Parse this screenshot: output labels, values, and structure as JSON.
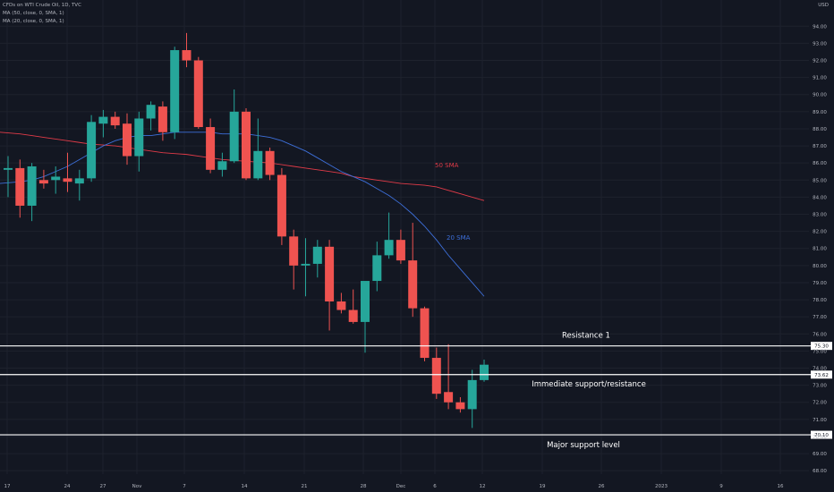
{
  "legend": {
    "title": "CFDs on WTI Crude Oil, 1D, TVC",
    "ma50": "MA (50, close, 0, SMA, 1)",
    "ma20": "MA (20, close, 0, SMA, 1)"
  },
  "currency": "USD",
  "chart_data": {
    "type": "candlestick",
    "title": "",
    "xlabel": "",
    "ylabel": "",
    "ylim": [
      67.8,
      94.8
    ],
    "y_ticks": [
      68,
      69,
      70,
      71,
      72,
      73,
      74,
      75,
      76,
      77,
      78,
      79,
      80,
      81,
      82,
      83,
      84,
      85,
      86,
      87,
      88,
      89,
      90,
      91,
      92,
      93,
      94
    ],
    "x_ticks": [
      "17",
      "24",
      "27",
      "Nov",
      "7",
      "14",
      "21",
      "28",
      "Dec",
      "6",
      "12",
      "19",
      "26",
      "2023",
      "9",
      "16"
    ],
    "candles": [
      {
        "o": 85.6,
        "h": 86.4,
        "l": 84.0,
        "c": 85.7
      },
      {
        "o": 85.7,
        "h": 86.2,
        "l": 82.8,
        "c": 83.5
      },
      {
        "o": 83.5,
        "h": 86.0,
        "l": 82.6,
        "c": 85.8
      },
      {
        "o": 85.0,
        "h": 85.6,
        "l": 84.5,
        "c": 84.8
      },
      {
        "o": 85.0,
        "h": 85.8,
        "l": 84.2,
        "c": 85.2
      },
      {
        "o": 85.1,
        "h": 86.6,
        "l": 84.3,
        "c": 84.9
      },
      {
        "o": 84.8,
        "h": 85.6,
        "l": 83.8,
        "c": 85.1
      },
      {
        "o": 85.1,
        "h": 88.8,
        "l": 84.9,
        "c": 88.4
      },
      {
        "o": 88.3,
        "h": 89.1,
        "l": 87.5,
        "c": 88.7
      },
      {
        "o": 88.7,
        "h": 89.0,
        "l": 88.0,
        "c": 88.2
      },
      {
        "o": 88.3,
        "h": 88.9,
        "l": 85.9,
        "c": 86.4
      },
      {
        "o": 86.4,
        "h": 89.0,
        "l": 85.5,
        "c": 88.6
      },
      {
        "o": 88.6,
        "h": 89.6,
        "l": 87.9,
        "c": 89.4
      },
      {
        "o": 89.3,
        "h": 89.6,
        "l": 87.3,
        "c": 87.8
      },
      {
        "o": 87.8,
        "h": 92.8,
        "l": 87.4,
        "c": 92.6
      },
      {
        "o": 92.6,
        "h": 93.6,
        "l": 91.6,
        "c": 92.0
      },
      {
        "o": 92.0,
        "h": 92.2,
        "l": 88.0,
        "c": 88.1
      },
      {
        "o": 88.1,
        "h": 88.6,
        "l": 85.4,
        "c": 85.6
      },
      {
        "o": 85.6,
        "h": 86.6,
        "l": 85.2,
        "c": 86.1
      },
      {
        "o": 86.1,
        "h": 90.3,
        "l": 86.0,
        "c": 89.0
      },
      {
        "o": 89.0,
        "h": 89.2,
        "l": 85.0,
        "c": 85.1
      },
      {
        "o": 85.1,
        "h": 88.6,
        "l": 85.0,
        "c": 86.7
      },
      {
        "o": 86.7,
        "h": 86.9,
        "l": 85.0,
        "c": 85.3
      },
      {
        "o": 85.3,
        "h": 85.7,
        "l": 81.2,
        "c": 81.7
      },
      {
        "o": 81.7,
        "h": 82.1,
        "l": 78.6,
        "c": 80.0
      },
      {
        "o": 80.0,
        "h": 81.6,
        "l": 78.2,
        "c": 80.1
      },
      {
        "o": 80.1,
        "h": 81.5,
        "l": 79.3,
        "c": 81.1
      },
      {
        "o": 81.1,
        "h": 81.5,
        "l": 76.2,
        "c": 77.9
      },
      {
        "o": 77.9,
        "h": 78.4,
        "l": 77.2,
        "c": 77.4
      },
      {
        "o": 77.4,
        "h": 78.6,
        "l": 76.6,
        "c": 76.7
      },
      {
        "o": 76.7,
        "h": 79.0,
        "l": 74.9,
        "c": 79.1
      },
      {
        "o": 79.1,
        "h": 81.4,
        "l": 78.5,
        "c": 80.6
      },
      {
        "o": 80.6,
        "h": 83.1,
        "l": 80.4,
        "c": 81.5
      },
      {
        "o": 81.5,
        "h": 82.1,
        "l": 80.1,
        "c": 80.3
      },
      {
        "o": 80.3,
        "h": 82.5,
        "l": 77.0,
        "c": 77.5
      },
      {
        "o": 77.5,
        "h": 77.6,
        "l": 74.4,
        "c": 74.6
      },
      {
        "o": 74.6,
        "h": 75.2,
        "l": 72.2,
        "c": 72.5
      },
      {
        "o": 72.6,
        "h": 75.4,
        "l": 71.6,
        "c": 72.0
      },
      {
        "o": 72.0,
        "h": 72.3,
        "l": 71.4,
        "c": 71.6
      },
      {
        "o": 71.6,
        "h": 73.9,
        "l": 70.5,
        "c": 73.3
      },
      {
        "o": 73.3,
        "h": 74.5,
        "l": 73.2,
        "c": 74.2
      }
    ],
    "series": [
      {
        "name": "50 SMA",
        "color": "#e03b48",
        "values": [
          87.8,
          87.7,
          87.6,
          87.5,
          87.4,
          87.3,
          87.2,
          87.1,
          87.05,
          87.0,
          86.9,
          86.8,
          86.7,
          86.6,
          86.55,
          86.5,
          86.4,
          86.3,
          86.2,
          86.15,
          86.1,
          86.05,
          86.0,
          85.9,
          85.8,
          85.7,
          85.6,
          85.5,
          85.4,
          85.2,
          85.1,
          85.0,
          84.9,
          84.8,
          84.75,
          84.7,
          84.6,
          84.4,
          84.2,
          84.0,
          83.8
        ]
      },
      {
        "name": "20 SMA",
        "color": "#3d6fd9",
        "values": [
          84.8,
          84.9,
          85.0,
          85.2,
          85.5,
          85.8,
          86.2,
          86.6,
          87.0,
          87.3,
          87.5,
          87.6,
          87.6,
          87.7,
          87.8,
          87.8,
          87.8,
          87.8,
          87.7,
          87.7,
          87.7,
          87.6,
          87.5,
          87.3,
          87.0,
          86.7,
          86.3,
          85.9,
          85.5,
          85.2,
          84.9,
          84.5,
          84.1,
          83.6,
          83.0,
          82.3,
          81.5,
          80.6,
          79.8,
          79.0,
          78.2
        ]
      }
    ],
    "levels": [
      {
        "label": "Resistance 1",
        "value": 75.3,
        "tag": "75.30"
      },
      {
        "label": "Immediate support/resistance",
        "value": 73.62,
        "tag": "73.62"
      },
      {
        "label": "Major support level",
        "value": 70.1,
        "tag": "70.10"
      }
    ],
    "colors": {
      "up": "#26a69a",
      "down": "#ef5350",
      "background": "#131722",
      "grid": "#1e222d"
    }
  }
}
